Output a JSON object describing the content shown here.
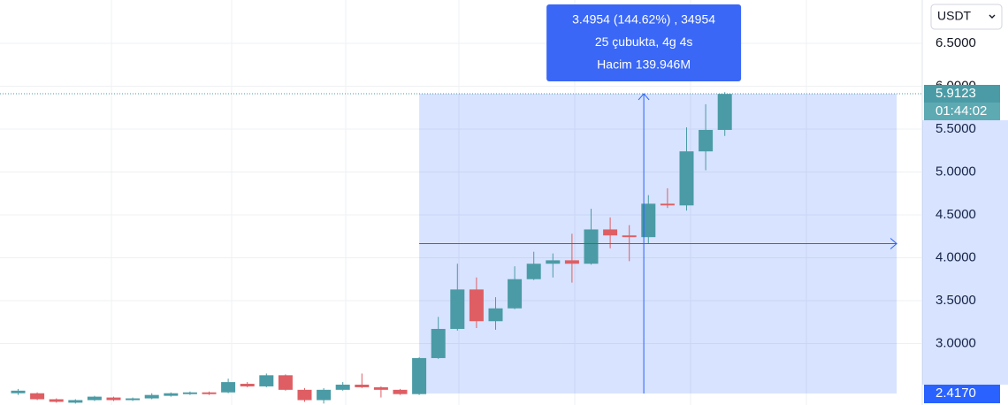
{
  "chart_data": {
    "type": "candlestick",
    "currency": "USDT",
    "open": [
      2.42,
      2.42,
      2.35,
      2.31,
      2.34,
      2.37,
      2.34,
      2.36,
      2.39,
      2.41,
      2.43,
      2.43,
      2.53,
      2.5,
      2.63,
      2.46,
      2.34,
      2.46,
      2.52,
      2.49,
      2.46,
      2.41,
      2.83,
      3.17,
      3.63,
      3.26,
      3.41,
      3.75,
      3.93,
      3.97,
      3.93,
      4.33,
      4.26,
      4.24,
      4.63,
      4.61,
      5.24,
      5.49
    ],
    "high": [
      2.47,
      2.43,
      2.36,
      2.35,
      2.39,
      2.38,
      2.37,
      2.42,
      2.43,
      2.44,
      2.44,
      2.59,
      2.55,
      2.65,
      2.64,
      2.48,
      2.48,
      2.55,
      2.65,
      2.5,
      2.47,
      2.84,
      3.31,
      3.93,
      3.77,
      3.54,
      3.9,
      4.07,
      4.05,
      4.28,
      4.57,
      4.47,
      4.38,
      4.73,
      4.81,
      5.52,
      5.79,
      5.93
    ],
    "low": [
      2.4,
      2.34,
      2.31,
      2.3,
      2.33,
      2.33,
      2.33,
      2.35,
      2.38,
      2.4,
      2.4,
      2.42,
      2.49,
      2.49,
      2.45,
      2.32,
      2.3,
      2.45,
      2.48,
      2.37,
      2.4,
      2.4,
      2.82,
      3.15,
      3.18,
      3.16,
      3.4,
      3.74,
      3.77,
      3.71,
      3.92,
      4.11,
      3.96,
      4.16,
      4.58,
      4.55,
      5.02,
      5.42
    ],
    "close": [
      2.45,
      2.35,
      2.32,
      2.34,
      2.38,
      2.34,
      2.36,
      2.4,
      2.42,
      2.43,
      2.41,
      2.55,
      2.5,
      2.63,
      2.46,
      2.34,
      2.46,
      2.52,
      2.49,
      2.46,
      2.41,
      2.83,
      3.17,
      3.63,
      3.26,
      3.41,
      3.75,
      3.93,
      3.97,
      3.93,
      4.33,
      4.26,
      4.24,
      4.63,
      4.61,
      5.24,
      5.49,
      5.91
    ],
    "up_color": "#4a9ba5",
    "down_color": "#de5e63",
    "ylim": [
      2.283,
      7.005
    ],
    "yticks": [
      {
        "value": 3.0,
        "label": "3.0000"
      },
      {
        "value": 3.5,
        "label": "3.5000"
      },
      {
        "value": 4.0,
        "label": "4.0000"
      },
      {
        "value": 4.5,
        "label": "4.5000"
      },
      {
        "value": 5.0,
        "label": "5.0000"
      },
      {
        "value": 5.5,
        "label": "5.5000"
      },
      {
        "value": 6.0,
        "label": "6.0000"
      },
      {
        "value": 6.5,
        "label": "6.5000"
      }
    ],
    "grid": true,
    "last_price": 5.9123,
    "countdown": "01:44:02",
    "measure": {
      "low": {
        "value": 2.417,
        "label": "2.4170"
      },
      "high": 5.9123,
      "lines": [
        "3.4954 (144.62%) , 34954",
        "25 çubukta, 4g 4s",
        "Hacim 139.946M"
      ]
    }
  }
}
